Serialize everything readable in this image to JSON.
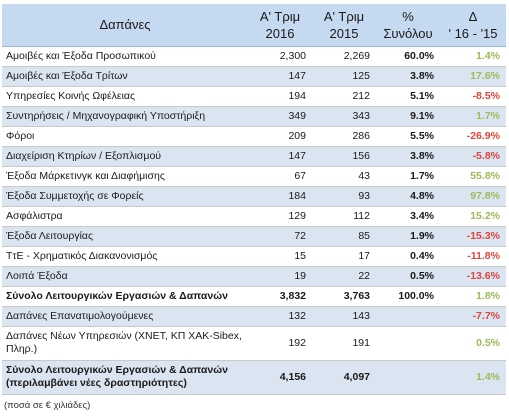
{
  "header": {
    "name": "Δαπάνες",
    "q2016_line1": "Α' Τριμ",
    "q2016_line2": "2016",
    "q2015_line1": "Α' Τριμ",
    "q2015_line2": "2015",
    "share_line1": "%",
    "share_line2": "Συνόλου",
    "change_line1": "Δ",
    "change_line2": "' 16 - '15"
  },
  "rows": [
    {
      "name": "Αμοιβές και Έξοδα Προσωπικού",
      "q2016": "2,300",
      "q2015": "2,269",
      "share": "60.0%",
      "change": "1.4%"
    },
    {
      "name": "Αμοιβές και Έξοδα Τρίτων",
      "q2016": "147",
      "q2015": "125",
      "share": "3.8%",
      "change": "17.6%"
    },
    {
      "name": "Υπηρεσίες Κοινής Ωφέλειας",
      "q2016": "194",
      "q2015": "212",
      "share": "5.1%",
      "change": "-8.5%"
    },
    {
      "name": "Συντηρήσεις / Μηχανογραφική Υποστήριξη",
      "q2016": "349",
      "q2015": "343",
      "share": "9.1%",
      "change": "1.7%"
    },
    {
      "name": "Φόροι",
      "q2016": "209",
      "q2015": "286",
      "share": "5.5%",
      "change": "-26.9%"
    },
    {
      "name": "Διαχείριση Κτηρίων / Εξοπλισμού",
      "q2016": "147",
      "q2015": "156",
      "share": "3.8%",
      "change": "-5.8%"
    },
    {
      "name": "Έξοδα Μάρκετινγκ και Διαφήμισης",
      "q2016": "67",
      "q2015": "43",
      "share": "1.7%",
      "change": "55.8%"
    },
    {
      "name": "Έξοδα Συμμετοχής σε Φορείς",
      "q2016": "184",
      "q2015": "93",
      "share": "4.8%",
      "change": "97.8%"
    },
    {
      "name": "Ασφάλιστρα",
      "q2016": "129",
      "q2015": "112",
      "share": "3.4%",
      "change": "15.2%"
    },
    {
      "name": "Έξοδα Λειτουργίας",
      "q2016": "72",
      "q2015": "85",
      "share": "1.9%",
      "change": "-15.3%"
    },
    {
      "name": "ΤτΕ - Χρηματικός Διακανονισμός",
      "q2016": "15",
      "q2015": "17",
      "share": "0.4%",
      "change": "-11.8%"
    },
    {
      "name": "Λοιπά Έξοδα",
      "q2016": "19",
      "q2015": "22",
      "share": "0.5%",
      "change": "-13.6%"
    },
    {
      "name": "Σύνολο Λειτουργικών Εργασιών & Δαπανών",
      "q2016": "3,832",
      "q2015": "3,763",
      "share": "100.0%",
      "change": "1.8%"
    },
    {
      "name": "Δαπάνες Επανατιμολογούμενες",
      "q2016": "132",
      "q2015": "143",
      "share": "",
      "change": "-7.7%"
    },
    {
      "name": "Δαπάνες Νέων Υπηρεσιών (ΧΝΕΤ, ΚΠ ΧΑΚ-Sibex, Πληρ.)",
      "q2016": "192",
      "q2015": "191",
      "share": "",
      "change": "0.5%"
    },
    {
      "name": "Σύνολο Λειτουργικών Εργασιών & Δαπανών (περιλαμβάνει νέες δραστηριότητες)",
      "q2016": "4,156",
      "q2015": "4,097",
      "share": "",
      "change": "1.4%"
    }
  ],
  "footnote": "(ποσά σε € χιλιάδες)",
  "colors": {
    "header_bg": "#c5d9f1",
    "alt_row_bg": "#dbe5f1",
    "positive": "#9bbb59",
    "negative": "#e0443a"
  }
}
